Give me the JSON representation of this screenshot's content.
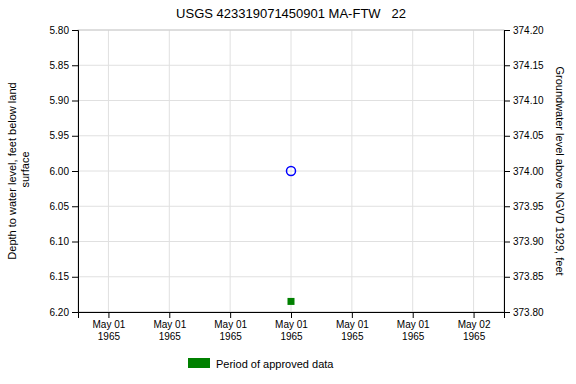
{
  "chart_data": {
    "type": "scatter",
    "title": "USGS 423319071450901 MA-FTW   22",
    "y_label": "Depth to water level, feet below land\n surface",
    "y2_label": "Groundwater level above NGVD 1929, feet",
    "categories": [
      "May 01\n1965",
      "May 01\n1965",
      "May 01\n1965",
      "May 01\n1965",
      "May 01\n1965",
      "May 01\n1965",
      "May 02\n1965"
    ],
    "series": [
      {
        "color": "blue",
        "marker": "circle",
        "values": [
          null,
          null,
          null,
          6.0,
          null,
          null,
          null
        ]
      },
      {
        "name": "Period of approved data",
        "color": "#008000",
        "marker": "square",
        "values": [
          null,
          null,
          null,
          6.185,
          null,
          null,
          null
        ]
      }
    ],
    "ylim": [
      6.2,
      5.8
    ],
    "yticks": [
      {
        "value": 5.8,
        "label": "5.80"
      },
      {
        "value": 5.85,
        "label": "5.85"
      },
      {
        "value": 5.9,
        "label": "5.90"
      },
      {
        "value": 5.95,
        "label": "5.95"
      },
      {
        "value": 6.0,
        "label": "6.00"
      },
      {
        "value": 6.05,
        "label": "6.05"
      },
      {
        "value": 6.1,
        "label": "6.10"
      },
      {
        "value": 6.15,
        "label": "6.15"
      },
      {
        "value": 6.2,
        "label": "6.20"
      }
    ],
    "y2lim": [
      373.8,
      374.2
    ],
    "y2ticks": [
      {
        "value": 373.8,
        "label": "373.80"
      },
      {
        "value": 373.85,
        "label": "373.85"
      },
      {
        "value": 373.9,
        "label": "373.90"
      },
      {
        "value": 373.95,
        "label": "373.95"
      },
      {
        "value": 374.0,
        "label": "374.00"
      },
      {
        "value": 374.05,
        "label": "374.05"
      },
      {
        "value": 374.1,
        "label": "374.10"
      },
      {
        "value": 374.15,
        "label": "374.15"
      },
      {
        "value": 374.2,
        "label": "374.20"
      }
    ],
    "grid": true,
    "legend": "bottom"
  }
}
